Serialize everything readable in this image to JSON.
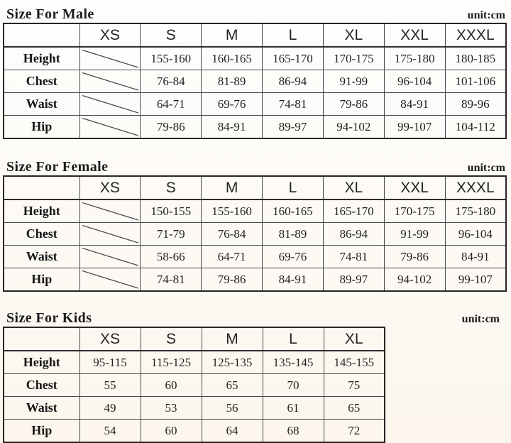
{
  "tables": [
    {
      "id": "male",
      "title": "Size For Male",
      "unit": "unit:cm",
      "sizes": [
        "XS",
        "S",
        "M",
        "L",
        "XL",
        "XXL",
        "XXXL"
      ],
      "rows": [
        {
          "label": "Height",
          "values": [
            null,
            "155-160",
            "160-165",
            "165-170",
            "170-175",
            "175-180",
            "180-185"
          ]
        },
        {
          "label": "Chest",
          "values": [
            null,
            "76-84",
            "81-89",
            "86-94",
            "91-99",
            "96-104",
            "101-106"
          ]
        },
        {
          "label": "Waist",
          "values": [
            null,
            "64-71",
            "69-76",
            "74-81",
            "79-86",
            "84-91",
            "89-96"
          ]
        },
        {
          "label": "Hip",
          "values": [
            null,
            "79-86",
            "84-91",
            "89-97",
            "94-102",
            "99-107",
            "104-112"
          ]
        }
      ]
    },
    {
      "id": "female",
      "title": "Size For Female",
      "unit": "unit:cm",
      "sizes": [
        "XS",
        "S",
        "M",
        "L",
        "XL",
        "XXL",
        "XXXL"
      ],
      "rows": [
        {
          "label": "Height",
          "values": [
            null,
            "150-155",
            "155-160",
            "160-165",
            "165-170",
            "170-175",
            "175-180"
          ]
        },
        {
          "label": "Chest",
          "values": [
            null,
            "71-79",
            "76-84",
            "81-89",
            "86-94",
            "91-99",
            "96-104"
          ]
        },
        {
          "label": "Waist",
          "values": [
            null,
            "58-66",
            "64-71",
            "69-76",
            "74-81",
            "79-86",
            "84-91"
          ]
        },
        {
          "label": "Hip",
          "values": [
            null,
            "74-81",
            "79-86",
            "84-91",
            "89-97",
            "94-102",
            "99-107"
          ]
        }
      ]
    },
    {
      "id": "kids",
      "title": "Size For Kids",
      "unit": "unit:cm",
      "sizes": [
        "XS",
        "S",
        "M",
        "L",
        "XL"
      ],
      "rows": [
        {
          "label": "Height",
          "values": [
            "95-115",
            "115-125",
            "125-135",
            "135-145",
            "145-155"
          ]
        },
        {
          "label": "Chest",
          "values": [
            "55",
            "60",
            "65",
            "70",
            "75"
          ]
        },
        {
          "label": "Waist",
          "values": [
            "49",
            "53",
            "56",
            "61",
            "65"
          ]
        },
        {
          "label": "Hip",
          "values": [
            "54",
            "60",
            "64",
            "68",
            "72"
          ]
        }
      ]
    }
  ]
}
